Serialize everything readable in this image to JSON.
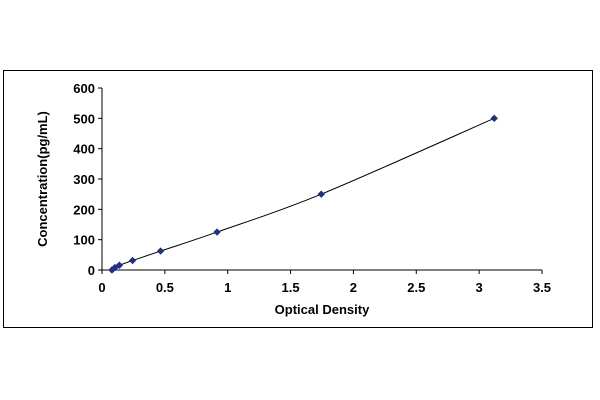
{
  "chart_data": {
    "type": "scatter",
    "xlabel": "Optical Density",
    "ylabel": "Concentration(pg/mL)",
    "xlim": [
      0,
      3.5
    ],
    "ylim": [
      0,
      600
    ],
    "xticks": [
      "0",
      "0.5",
      "1",
      "1.5",
      "2",
      "2.5",
      "3",
      "3.5"
    ],
    "yticks": [
      "0",
      "100",
      "200",
      "300",
      "400",
      "500",
      "600"
    ],
    "grid": false,
    "series": [
      {
        "x": [
          0.079,
          0.102,
          0.138,
          0.243,
          0.466,
          0.915,
          1.744,
          3.12
        ],
        "y": [
          0,
          7.8,
          15.6,
          31.2,
          62.5,
          125,
          250,
          500
        ],
        "fit_line": true,
        "marker": "diamond",
        "color": "#1f2f8c"
      }
    ]
  }
}
